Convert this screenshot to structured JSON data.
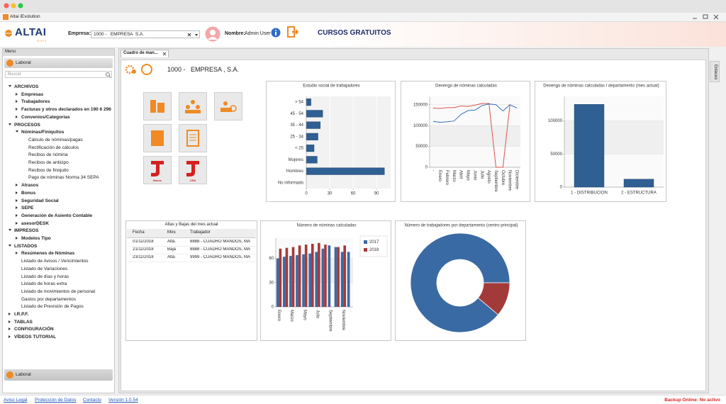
{
  "window": {
    "title": "Altai iEvolution"
  },
  "header": {
    "logo": "ALTAI",
    "logo_sub": "SOFT",
    "empresa_label": "Empresa:",
    "empresa_value": "1000 -   EMPRESA  S.A.",
    "nombre_label": "Nombre:",
    "nombre_value": "Admin User",
    "promo": "CURSOS GRATUITOS"
  },
  "sidebar": {
    "title": "Menu",
    "module": "Laboral",
    "search_placeholder": "Buscar",
    "footer_module": "Laboral",
    "tree": [
      {
        "label": "ARCHIVOS",
        "children": [
          {
            "label": "Empresas",
            "children": []
          },
          {
            "label": "Trabajadores",
            "children": []
          },
          {
            "label": "Facturas y otros declarados en 190 6 296",
            "children": []
          },
          {
            "label": "Convenios/Categorías",
            "children": []
          }
        ]
      },
      {
        "label": "PROCESOS",
        "children": [
          {
            "label": "Nóminas/Finiquitos",
            "children": [
              {
                "label": "Cálculo de nóminas/pagas"
              },
              {
                "label": "Rectificación de cálculos"
              },
              {
                "label": "Recibos de nómina"
              },
              {
                "label": "Recibos de anticipo"
              },
              {
                "label": "Recibos de finiquito"
              },
              {
                "label": "Pago de nóminas Norma 34 SEPA"
              }
            ]
          },
          {
            "label": "Atrasos",
            "children": []
          },
          {
            "label": "Bonus",
            "children": []
          },
          {
            "label": "Seguridad Social",
            "children": []
          },
          {
            "label": "SEPE",
            "children": []
          },
          {
            "label": "Generación de Asiento Contable",
            "children": []
          },
          {
            "label": "asesorDESK",
            "children": []
          }
        ]
      },
      {
        "label": "IMPRESOS",
        "children": [
          {
            "label": "Modelos Tipo",
            "children": []
          }
        ]
      },
      {
        "label": "LISTADOS",
        "children": [
          {
            "label": "Resúmenes de Nóminas",
            "children": []
          },
          {
            "label": "Listado de Avisos / Vencimientos"
          },
          {
            "label": "Listado de Variaciones"
          },
          {
            "label": "Listado de días y horas"
          },
          {
            "label": "Listado de horas extra"
          },
          {
            "label": "Listado de movimientos de personal"
          },
          {
            "label": "Gastos por departamentos"
          },
          {
            "label": "Listado de Previsión de Pagos"
          }
        ]
      },
      {
        "label": "I.R.P.F.",
        "children": []
      },
      {
        "label": "TABLAS",
        "children": []
      },
      {
        "label": "CONFIGURACIÓN",
        "children": []
      },
      {
        "label": "VÍDEOS TUTORIAL",
        "children": []
      }
    ]
  },
  "tab": {
    "label": "Cuadro de man..."
  },
  "dashboard": {
    "company": "1000 -   EMPRESA , S.A.",
    "side_tab": "Enlaces",
    "shortcuts": [
      "Rasoc",
      "CRA"
    ],
    "table": {
      "title": "Altas y Bajas del mes actual",
      "columns": [
        "Fecha",
        "Mov.",
        "Trabajador"
      ],
      "rows": [
        [
          "01/11/2018",
          "Alta.",
          "8888 - CUADRO MANDOS, MA"
        ],
        [
          "21/11/2018",
          "Baja",
          "8888 - CUADRO MANDOS, MA"
        ],
        [
          "23/11/2018",
          "Alta.",
          "9999 - CUADRO MANDOS, MA"
        ]
      ]
    },
    "charts": [
      {
        "type": "bar",
        "horizontal": true,
        "title": "Estudio social de trabajadores",
        "categories": [
          "> 54",
          "45 - 54",
          "35 - 44",
          "25 - 34",
          "< 25",
          "Mujeres",
          "Hombres",
          "No informado"
        ],
        "values": [
          6,
          21,
          18,
          15,
          10,
          14,
          100,
          0
        ],
        "color": "#2f5f93",
        "xlim": [
          0,
          108
        ],
        "xticks": [
          0,
          30,
          60,
          90
        ],
        "grid": true
      },
      {
        "type": "line",
        "title": "Devengo de nóminas calculadas",
        "categories": [
          "-",
          "Enero",
          "Febrero",
          "Marzo",
          "Abril",
          "Mayo",
          "Junio",
          "Julio",
          "Agosto",
          "Septiembre",
          "Octubre",
          "Noviembre",
          "Diciembre"
        ],
        "series": [
          {
            "color": "#d9534f",
            "values": [
              142000,
              141000,
              143000,
              143000,
              147000,
              146000,
              149000,
              153000,
              153000,
              0,
              0,
              150000,
              null
            ]
          },
          {
            "color": "#3a6fb5",
            "values": [
              110000,
              108000,
              109000,
              111000,
              127000,
              136000,
              137000,
              148000,
              152000,
              150000,
              135000,
              150000,
              142000
            ]
          }
        ],
        "ylim": [
          0,
          170000
        ],
        "yticks": [
          0,
          50000,
          100000,
          150000
        ],
        "grid": true
      },
      {
        "type": "bar",
        "title": "Devengo de nóminas calculadas / departamento (mes actual)",
        "categories": [
          "1 - DISTRIBUCION",
          "2 - ESTRUCTURA"
        ],
        "values": [
          125000,
          12000
        ],
        "color": "#2f5f93",
        "ylim": [
          0,
          137000
        ],
        "yticks": [
          0,
          50000,
          100000
        ],
        "grid": true
      },
      {
        "type": "bar",
        "title": "Número de nóminas calculadas",
        "categories": [
          "Enero",
          null,
          "Marzo",
          null,
          "Mayo",
          null,
          "Julio",
          null,
          "Septiembre",
          null,
          "Noviembre",
          null
        ],
        "series": [
          {
            "name": "2017",
            "color": "#3a6aa3",
            "values": [
              60,
              62,
              63,
              64,
              65,
              66,
              68,
              72,
              76,
              74,
              68,
              68
            ]
          },
          {
            "name": "2018",
            "color": "#a63a3a",
            "values": [
              72,
              73,
              74,
              76,
              77,
              78,
              79,
              77,
              0,
              74,
              76,
              null
            ]
          }
        ],
        "ylim": [
          0,
          85
        ],
        "yticks": [
          0,
          30,
          60
        ],
        "grid": true,
        "legend": "right"
      },
      {
        "type": "donut",
        "title": "Número de trabajadores por departamento (centro principal)",
        "values": [
          8,
          1
        ],
        "colors": [
          "#3a6aa3",
          "#a33a3a"
        ]
      }
    ]
  },
  "footer": {
    "links": [
      "Aviso Legal",
      "Protección de Datos",
      "Contacto",
      "Versión 1.0.54"
    ],
    "status": "Backup Online: No activo"
  }
}
